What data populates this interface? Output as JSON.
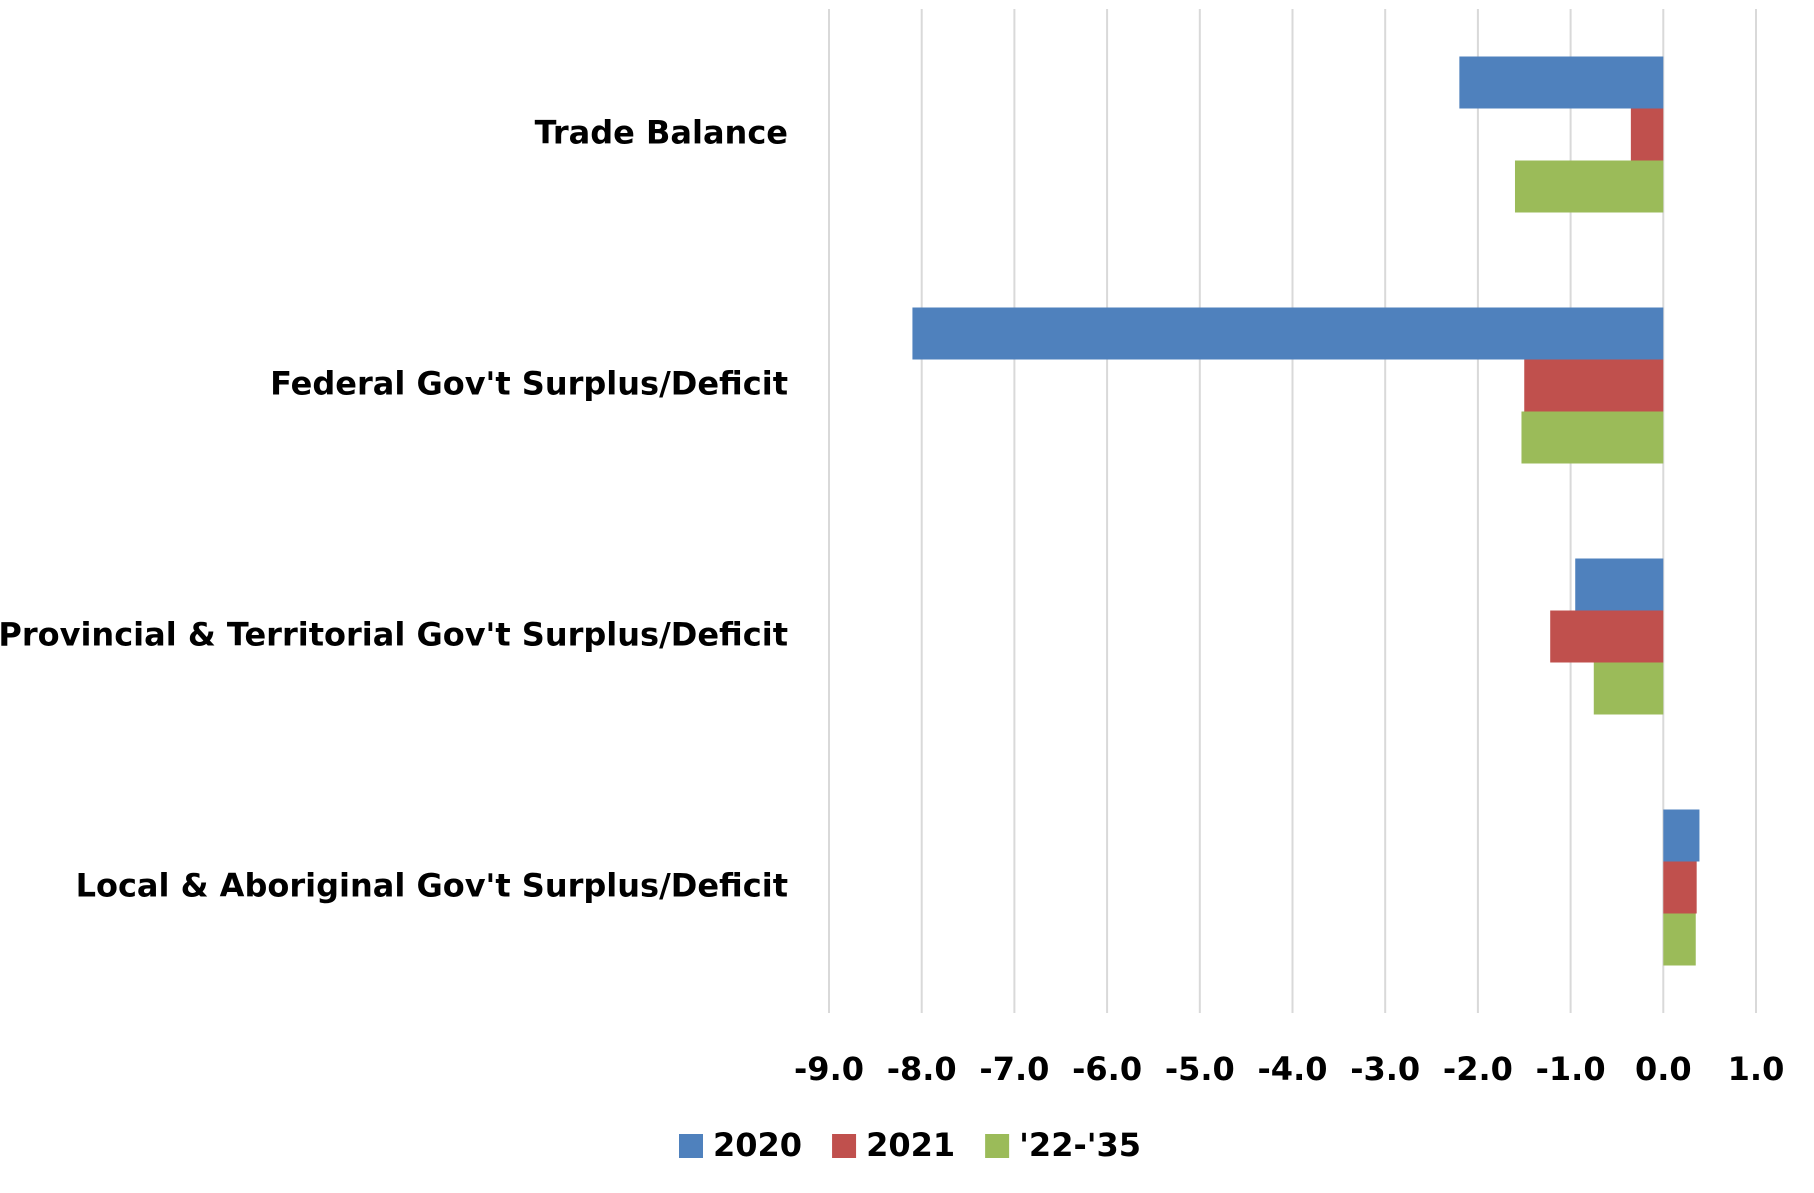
{
  "chart_data": {
    "type": "barh",
    "categories": [
      "Trade Balance",
      "Federal Gov't Surplus/Deficit",
      "Provincial & Territorial Gov't Surplus/Deficit",
      "Local & Aboriginal Gov't Surplus/Deficit"
    ],
    "series": [
      {
        "name": "2020",
        "color": "#4f81bd",
        "values": [
          -2.2,
          -8.1,
          -0.95,
          0.39
        ]
      },
      {
        "name": "2021",
        "color": "#c0504d",
        "values": [
          -0.35,
          -1.5,
          -1.22,
          0.36
        ]
      },
      {
        "name": "'22-'35",
        "color": "#9bbb59",
        "values": [
          -1.6,
          -1.53,
          -0.75,
          0.35
        ]
      }
    ],
    "xlim": [
      -9,
      1
    ],
    "xticks": [
      {
        "value": -9,
        "label": "-9.0"
      },
      {
        "value": -8,
        "label": "-8.0"
      },
      {
        "value": -7,
        "label": "-7.0"
      },
      {
        "value": -6,
        "label": "-6.0"
      },
      {
        "value": -5,
        "label": "-5.0"
      },
      {
        "value": -4,
        "label": "-4.0"
      },
      {
        "value": -3,
        "label": "-3.0"
      },
      {
        "value": -2,
        "label": "-2.0"
      },
      {
        "value": -1,
        "label": "-1.0"
      },
      {
        "value": 0,
        "label": "0.0"
      },
      {
        "value": 1,
        "label": "1.0"
      }
    ],
    "grid": true,
    "legend": "bottom"
  }
}
